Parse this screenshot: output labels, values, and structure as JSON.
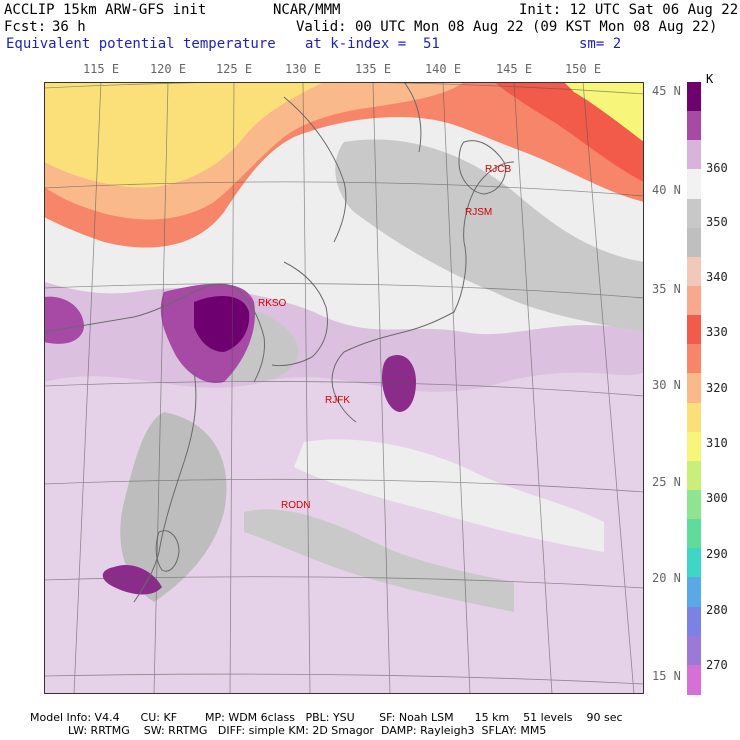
{
  "header": {
    "model_name": "ACCLIP 15km ARW-GFS init",
    "center": "NCAR/MMM",
    "init": "Init: 12 UTC Sat 06 Aug 22",
    "fcst_label": "Fcst:",
    "fcst_value": "36 h",
    "valid": "Valid: 00 UTC Mon 08 Aug 22 (09 KST Mon 08 Aug 22)",
    "field": "Equivalent potential temperature",
    "level": "at k-index =  51",
    "smoothing": "sm= 2"
  },
  "axes": {
    "longitudes": [
      "115 E",
      "120 E",
      "125 E",
      "130 E",
      "135 E",
      "140 E",
      "145 E",
      "150 E"
    ],
    "latitudes": [
      "45 N",
      "40 N",
      "35 N",
      "30 N",
      "25 N",
      "20 N",
      "15 N"
    ]
  },
  "stations": [
    {
      "id": "RJCB"
    },
    {
      "id": "RJSM"
    },
    {
      "id": "RKSO"
    },
    {
      "id": "RJFK"
    },
    {
      "id": "RODN"
    }
  ],
  "colorbar": {
    "unit": "K",
    "labels": [
      "360",
      "350",
      "340",
      "330",
      "320",
      "310",
      "300",
      "290",
      "280",
      "270"
    ],
    "colors": [
      "#6f006f",
      "#a64aa6",
      "#d8b4dc",
      "#f2f2f2",
      "#c8c8c8",
      "#bfbfbf",
      "#f2c9b8",
      "#f9a88c",
      "#f25a4a",
      "#f7856a",
      "#f9b98a",
      "#fbe07a",
      "#f7f57a",
      "#c9ee7a",
      "#8fe48f",
      "#5fdc9c",
      "#3fd6c6",
      "#5aa8e6",
      "#7a82e4",
      "#9a7ad6",
      "#d670d6"
    ]
  },
  "footer": {
    "line1": "Model Info: V4.4      CU: KF        MP: WDM 6class   PBL: YSU       SF: Noah LSM      15 km    51 levels    90 sec",
    "line2": "LW: RRTMG    SW: RRTMG   DIFF: simple KM: 2D Smagor  DAMP: Rayleigh3  SFLAY: MM5"
  }
}
